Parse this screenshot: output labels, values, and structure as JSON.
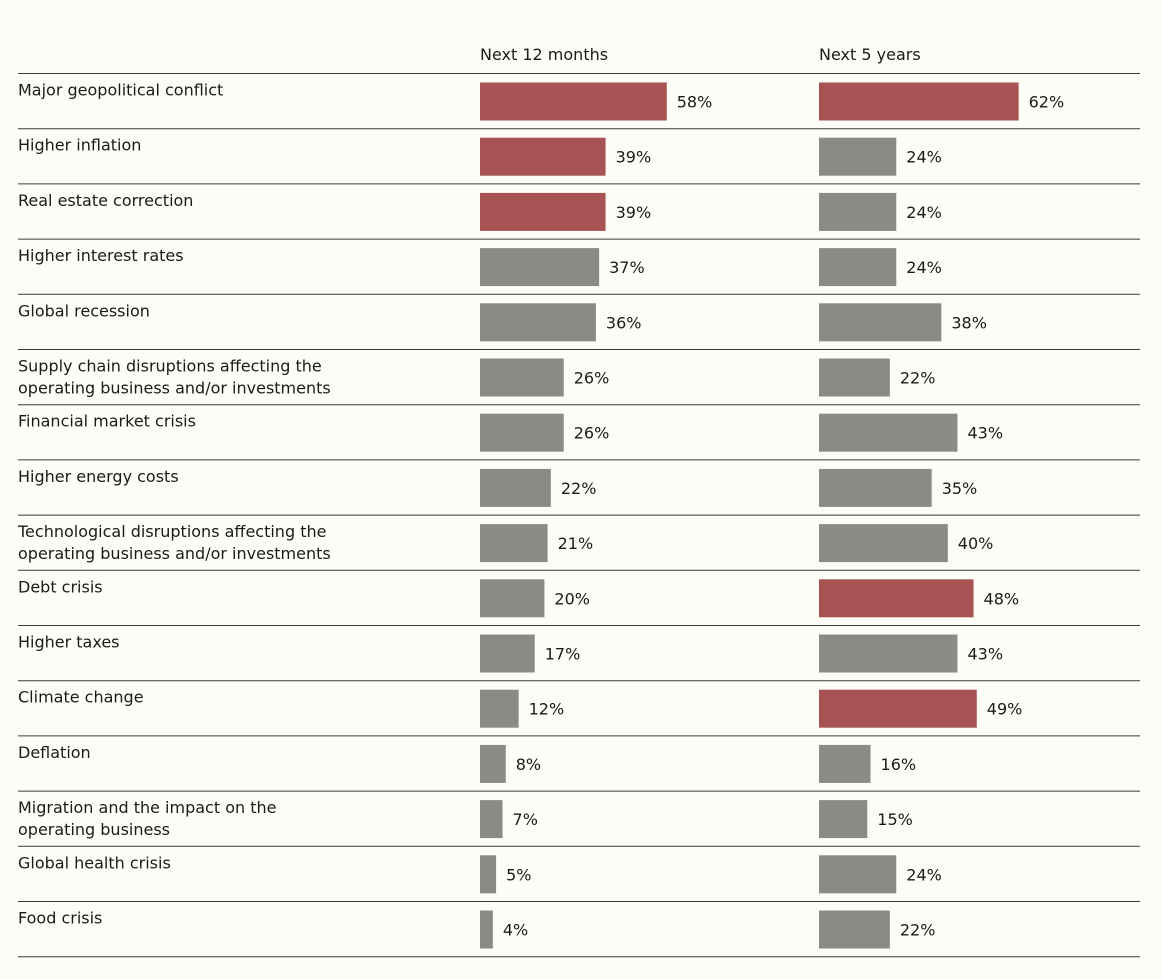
{
  "chart_data": {
    "type": "bar",
    "orientation": "horizontal",
    "series": [
      {
        "name": "Next 12 months",
        "values": [
          58,
          39,
          39,
          37,
          36,
          26,
          26,
          22,
          21,
          20,
          17,
          12,
          8,
          7,
          5,
          4
        ],
        "value_labels": [
          "58%",
          "39%",
          "39%",
          "37%",
          "36%",
          "26%",
          "26%",
          "22%",
          "21%",
          "20%",
          "17%",
          "12%",
          "8%",
          "7%",
          "5%",
          "4%"
        ],
        "highlighted": [
          true,
          true,
          true,
          false,
          false,
          false,
          false,
          false,
          false,
          false,
          false,
          false,
          false,
          false,
          false,
          false
        ]
      },
      {
        "name": "Next 5 years",
        "values": [
          62,
          24,
          24,
          24,
          38,
          22,
          43,
          35,
          40,
          48,
          43,
          49,
          16,
          15,
          24,
          22
        ],
        "value_labels": [
          "62%",
          "24%",
          "24%",
          "24%",
          "38%",
          "22%",
          "43%",
          "35%",
          "40%",
          "48%",
          "43%",
          "49%",
          "16%",
          "15%",
          "24%",
          "22%"
        ],
        "highlighted": [
          true,
          false,
          false,
          false,
          false,
          false,
          false,
          false,
          false,
          true,
          false,
          true,
          false,
          false,
          false,
          false
        ]
      }
    ],
    "categories": [
      [
        "Major geopolitical conflict"
      ],
      [
        "Higher inflation"
      ],
      [
        "Real estate correction"
      ],
      [
        "Higher interest rates"
      ],
      [
        "Global recession"
      ],
      [
        "Supply chain disruptions affecting the",
        "operating business and/or investments"
      ],
      [
        "Financial market crisis"
      ],
      [
        "Higher energy costs"
      ],
      [
        "Technological disruptions affecting the",
        "operating business and/or investments"
      ],
      [
        "Debt crisis"
      ],
      [
        "Higher taxes"
      ],
      [
        "Climate change"
      ],
      [
        "Deflation"
      ],
      [
        "Migration and the impact on the",
        "operating business"
      ],
      [
        "Global health crisis"
      ],
      [
        "Food crisis"
      ]
    ],
    "xlim": [
      0,
      100
    ],
    "grid": false,
    "legend": "none",
    "colors": {
      "highlight": "#a85353",
      "default": "#8a8a87"
    }
  }
}
